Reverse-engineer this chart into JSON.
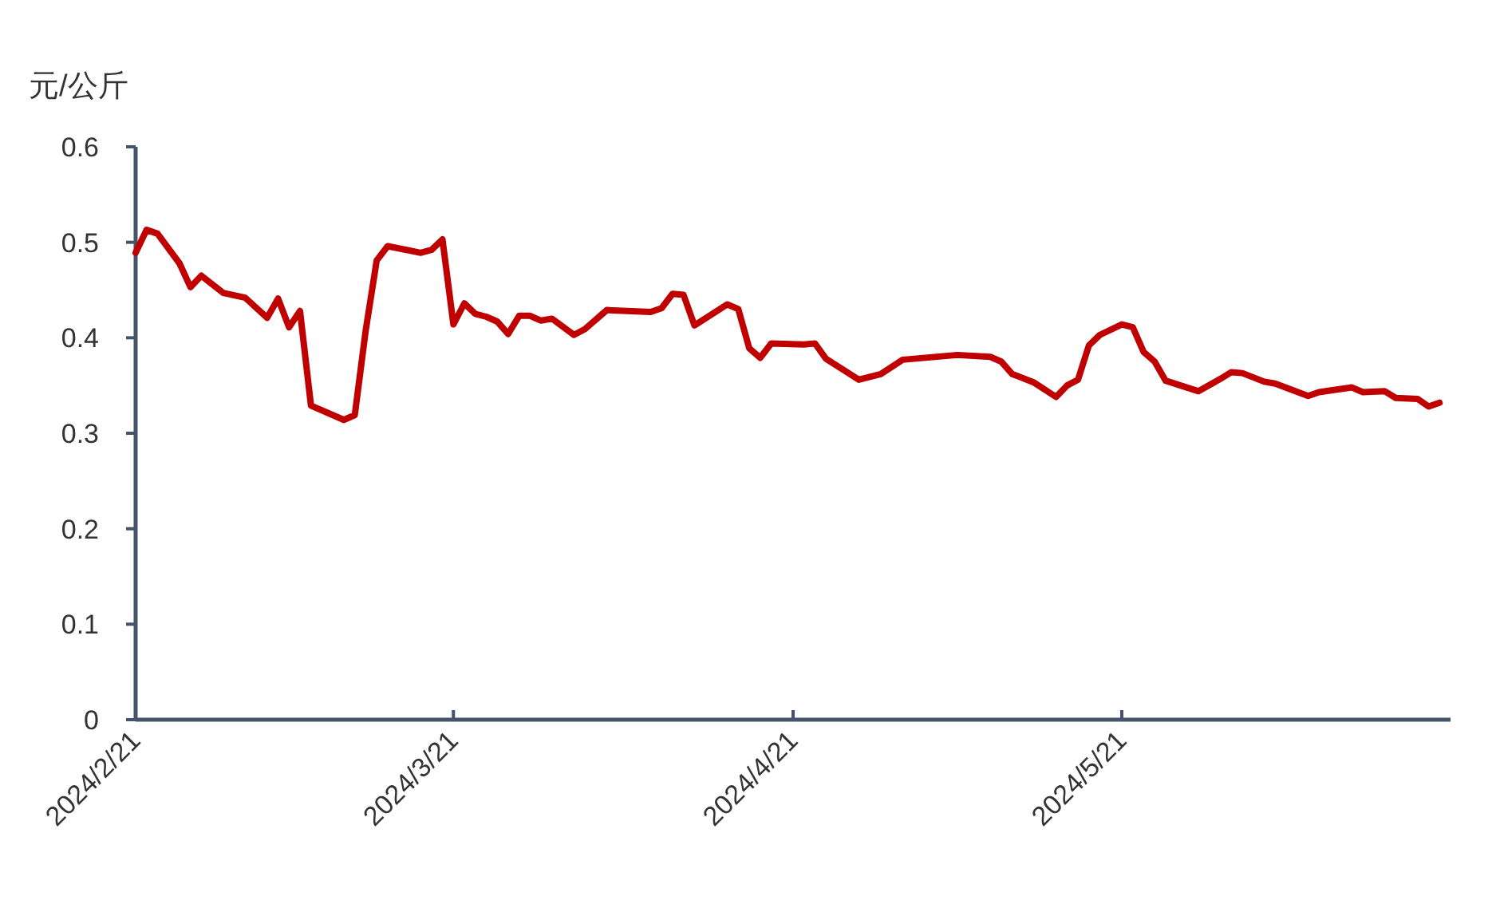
{
  "chart_data": {
    "type": "line",
    "ylabel": "元/公斤",
    "x": [
      "2024-02-21",
      "2024-02-22",
      "2024-02-23",
      "2024-02-25",
      "2024-02-26",
      "2024-02-27",
      "2024-02-29",
      "2024-03-02",
      "2024-03-04",
      "2024-03-05",
      "2024-03-06",
      "2024-03-07",
      "2024-03-08",
      "2024-03-11",
      "2024-03-12",
      "2024-03-13",
      "2024-03-14",
      "2024-03-15",
      "2024-03-18",
      "2024-03-19",
      "2024-03-20",
      "2024-03-21",
      "2024-03-22",
      "2024-03-23",
      "2024-03-24",
      "2024-03-25",
      "2024-03-26",
      "2024-03-27",
      "2024-03-28",
      "2024-03-29",
      "2024-03-30",
      "2024-04-01",
      "2024-04-02",
      "2024-04-04",
      "2024-04-08",
      "2024-04-09",
      "2024-04-10",
      "2024-04-11",
      "2024-04-12",
      "2024-04-15",
      "2024-04-16",
      "2024-04-17",
      "2024-04-18",
      "2024-04-19",
      "2024-04-22",
      "2024-04-23",
      "2024-04-24",
      "2024-04-27",
      "2024-04-29",
      "2024-05-01",
      "2024-05-06",
      "2024-05-09",
      "2024-05-10",
      "2024-05-11",
      "2024-05-13",
      "2024-05-15",
      "2024-05-16",
      "2024-05-17",
      "2024-05-18",
      "2024-05-19",
      "2024-05-21",
      "2024-05-22",
      "2024-05-23",
      "2024-05-24",
      "2024-05-25",
      "2024-05-28",
      "2024-05-30",
      "2024-05-31",
      "2024-06-01",
      "2024-06-03",
      "2024-06-04",
      "2024-06-07",
      "2024-06-08",
      "2024-06-11",
      "2024-06-12",
      "2024-06-14",
      "2024-06-15",
      "2024-06-17",
      "2024-06-18",
      "2024-06-19"
    ],
    "series": [
      {
        "color": "#c00000",
        "values": [
          0.489,
          0.513,
          0.509,
          0.478,
          0.453,
          0.465,
          0.447,
          0.442,
          0.421,
          0.441,
          0.411,
          0.428,
          0.329,
          0.314,
          0.319,
          0.408,
          0.481,
          0.496,
          0.489,
          0.492,
          0.503,
          0.414,
          0.436,
          0.425,
          0.422,
          0.417,
          0.404,
          0.423,
          0.423,
          0.418,
          0.42,
          0.403,
          0.409,
          0.429,
          0.427,
          0.431,
          0.446,
          0.445,
          0.413,
          0.435,
          0.43,
          0.389,
          0.379,
          0.394,
          0.393,
          0.394,
          0.378,
          0.356,
          0.362,
          0.377,
          0.382,
          0.38,
          0.375,
          0.362,
          0.353,
          0.338,
          0.35,
          0.356,
          0.392,
          0.403,
          0.414,
          0.411,
          0.385,
          0.375,
          0.355,
          0.344,
          0.357,
          0.364,
          0.363,
          0.354,
          0.352,
          0.339,
          0.343,
          0.348,
          0.343,
          0.344,
          0.337,
          0.336,
          0.328,
          0.332
        ]
      }
    ],
    "xlim": [
      "2024-02-21",
      "2024-06-20"
    ],
    "xticks": [
      {
        "value": "2024-02-21",
        "label": "2024/2/21"
      },
      {
        "value": "2024-03-21",
        "label": "2024/3/21"
      },
      {
        "value": "2024-04-21",
        "label": "2024/4/21"
      },
      {
        "value": "2024-05-21",
        "label": "2024/5/21"
      }
    ],
    "ylim": [
      0,
      0.6
    ],
    "yticks": [
      0,
      0.1,
      0.2,
      0.3,
      0.4,
      0.5,
      0.6
    ]
  }
}
